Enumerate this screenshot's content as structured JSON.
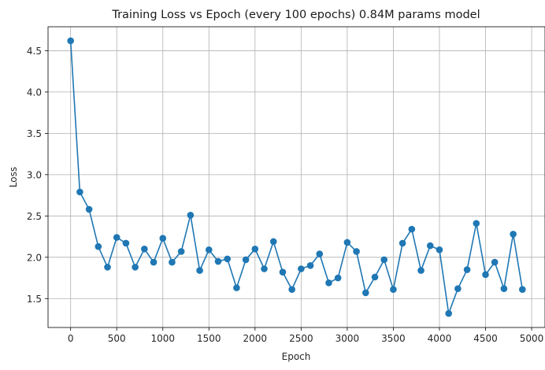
{
  "chart_data": {
    "type": "line",
    "title": "Training Loss vs Epoch (every 100 epochs) 0.84M params model",
    "xlabel": "Epoch",
    "ylabel": "Loss",
    "xlim": [
      -245,
      5145
    ],
    "ylim": [
      1.15,
      4.79
    ],
    "xticks": [
      0,
      500,
      1000,
      1500,
      2000,
      2500,
      3000,
      3500,
      4000,
      4500,
      5000
    ],
    "yticks": [
      1.5,
      2.0,
      2.5,
      3.0,
      3.5,
      4.0,
      4.5
    ],
    "ytick_labels": [
      "1.5",
      "2.0",
      "2.5",
      "3.0",
      "3.5",
      "4.0",
      "4.5"
    ],
    "grid": true,
    "color": "#1f77b4",
    "marker": "circle",
    "x": [
      0,
      100,
      200,
      300,
      400,
      500,
      600,
      700,
      800,
      900,
      1000,
      1100,
      1200,
      1300,
      1400,
      1500,
      1600,
      1700,
      1800,
      1900,
      2000,
      2100,
      2200,
      2300,
      2400,
      2500,
      2600,
      2700,
      2800,
      2900,
      3000,
      3100,
      3200,
      3300,
      3400,
      3500,
      3600,
      3700,
      3800,
      3900,
      4000,
      4100,
      4200,
      4300,
      4400,
      4500,
      4600,
      4700,
      4800,
      4900
    ],
    "y": [
      4.62,
      2.79,
      2.58,
      2.13,
      1.88,
      2.24,
      2.17,
      1.88,
      2.1,
      1.94,
      2.23,
      1.94,
      2.07,
      2.51,
      1.84,
      2.09,
      1.95,
      1.98,
      1.63,
      1.97,
      2.1,
      1.86,
      2.19,
      1.82,
      1.61,
      1.86,
      1.9,
      2.04,
      1.69,
      1.75,
      2.18,
      2.07,
      1.57,
      1.76,
      1.97,
      1.61,
      2.17,
      2.34,
      1.84,
      2.14,
      2.09,
      1.32,
      1.62,
      1.85,
      2.41,
      1.79,
      1.94,
      1.62,
      2.28,
      1.61
    ]
  }
}
